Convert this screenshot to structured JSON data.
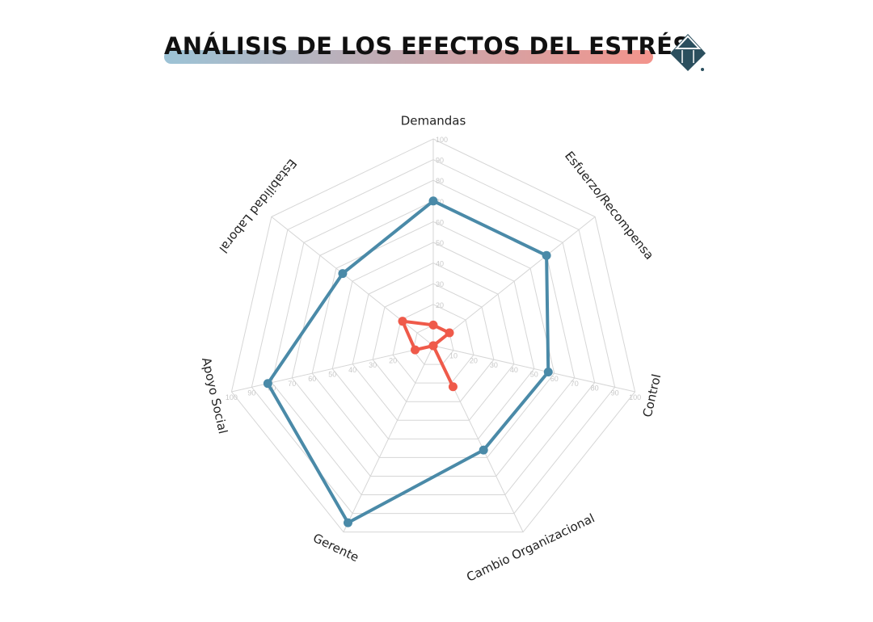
{
  "header": {
    "title": "ANÁLISIS DE LOS EFECTOS DEL ESTRÉS",
    "logo": "diamond-logo"
  },
  "colors": {
    "series_blue": "#4a8aa8",
    "series_red": "#ef5a4a",
    "grid": "#d6d6d6",
    "logo": "#2b4f5e"
  },
  "chart_data": {
    "type": "radar",
    "title": "",
    "categories": [
      "Demandas",
      "Esfuerzo/Recompensa",
      "Control",
      "Cambio Organizacional",
      "Gerente",
      "Apoyo Social",
      "Estabilidad Laboral"
    ],
    "radial_range": [
      0,
      100
    ],
    "radial_ticks": [
      10,
      20,
      30,
      40,
      50,
      60,
      70,
      80,
      90,
      100
    ],
    "grid": true,
    "series": [
      {
        "values": [
          70,
          70,
          57,
          56,
          95,
          82,
          56
        ],
        "color": "#4a8aa8"
      },
      {
        "values": [
          10,
          10,
          0,
          22,
          0,
          9,
          19
        ],
        "color": "#ef5a4a"
      }
    ]
  }
}
